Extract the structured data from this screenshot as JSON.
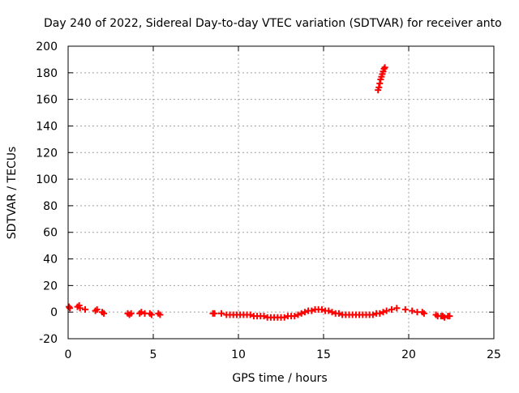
{
  "chart_data": {
    "type": "scatter",
    "title": "Day 240 of 2022, Sidereal Day-to-day VTEC variation (SDTVAR) for receiver anto",
    "xlabel": "GPS time / hours",
    "ylabel": "SDTVAR / TECUs",
    "xlim": [
      0,
      25
    ],
    "ylim": [
      -20,
      200
    ],
    "x_ticks": [
      0,
      5,
      10,
      15,
      20,
      25
    ],
    "y_ticks": [
      -20,
      0,
      20,
      40,
      60,
      80,
      100,
      120,
      140,
      160,
      180,
      200
    ],
    "grid": true,
    "marker": "+",
    "series_color": "#ff0000",
    "series": [
      {
        "name": "SDTVAR",
        "points": [
          [
            0.05,
            4
          ],
          [
            0.1,
            3
          ],
          [
            0.55,
            4
          ],
          [
            0.65,
            5
          ],
          [
            0.7,
            3
          ],
          [
            1.0,
            2
          ],
          [
            1.6,
            1
          ],
          [
            1.7,
            2
          ],
          [
            2.0,
            0
          ],
          [
            2.1,
            -1
          ],
          [
            3.5,
            -1
          ],
          [
            3.6,
            -2
          ],
          [
            3.7,
            -1
          ],
          [
            4.2,
            -1
          ],
          [
            4.3,
            0
          ],
          [
            4.5,
            -1
          ],
          [
            4.8,
            -1
          ],
          [
            4.9,
            -2
          ],
          [
            5.3,
            -1
          ],
          [
            5.4,
            -2
          ],
          [
            8.5,
            -1
          ],
          [
            8.6,
            -1
          ],
          [
            9.0,
            -1
          ],
          [
            9.3,
            -2
          ],
          [
            9.5,
            -2
          ],
          [
            9.7,
            -2
          ],
          [
            9.9,
            -2
          ],
          [
            10.1,
            -2
          ],
          [
            10.3,
            -2
          ],
          [
            10.5,
            -2
          ],
          [
            10.7,
            -2
          ],
          [
            10.9,
            -3
          ],
          [
            11.1,
            -3
          ],
          [
            11.3,
            -3
          ],
          [
            11.5,
            -3
          ],
          [
            11.7,
            -4
          ],
          [
            11.9,
            -4
          ],
          [
            12.1,
            -4
          ],
          [
            12.3,
            -4
          ],
          [
            12.5,
            -4
          ],
          [
            12.7,
            -4
          ],
          [
            12.9,
            -3
          ],
          [
            13.1,
            -3
          ],
          [
            13.3,
            -3
          ],
          [
            13.5,
            -2
          ],
          [
            13.7,
            -1
          ],
          [
            13.9,
            0
          ],
          [
            14.1,
            1
          ],
          [
            14.3,
            1
          ],
          [
            14.5,
            2
          ],
          [
            14.7,
            2
          ],
          [
            14.9,
            2
          ],
          [
            15.1,
            1
          ],
          [
            15.3,
            1
          ],
          [
            15.5,
            0
          ],
          [
            15.7,
            -1
          ],
          [
            15.9,
            -1
          ],
          [
            16.1,
            -2
          ],
          [
            16.3,
            -2
          ],
          [
            16.5,
            -2
          ],
          [
            16.7,
            -2
          ],
          [
            16.9,
            -2
          ],
          [
            17.1,
            -2
          ],
          [
            17.3,
            -2
          ],
          [
            17.5,
            -2
          ],
          [
            17.7,
            -2
          ],
          [
            17.9,
            -2
          ],
          [
            18.1,
            -1
          ],
          [
            18.3,
            -1
          ],
          [
            18.5,
            0
          ],
          [
            18.7,
            1
          ],
          [
            19.0,
            2
          ],
          [
            19.3,
            3
          ],
          [
            19.8,
            2
          ],
          [
            20.2,
            1
          ],
          [
            20.5,
            0
          ],
          [
            20.8,
            0
          ],
          [
            20.9,
            -1
          ],
          [
            21.6,
            -2
          ],
          [
            21.7,
            -3
          ],
          [
            21.9,
            -3
          ],
          [
            22.0,
            -3
          ],
          [
            22.1,
            -4
          ],
          [
            22.3,
            -3
          ],
          [
            22.4,
            -3
          ],
          [
            18.2,
            167
          ],
          [
            18.25,
            169
          ],
          [
            18.3,
            172
          ],
          [
            18.35,
            175
          ],
          [
            18.4,
            177
          ],
          [
            18.45,
            179
          ],
          [
            18.5,
            181
          ],
          [
            18.55,
            183
          ],
          [
            18.6,
            184
          ]
        ]
      }
    ]
  }
}
